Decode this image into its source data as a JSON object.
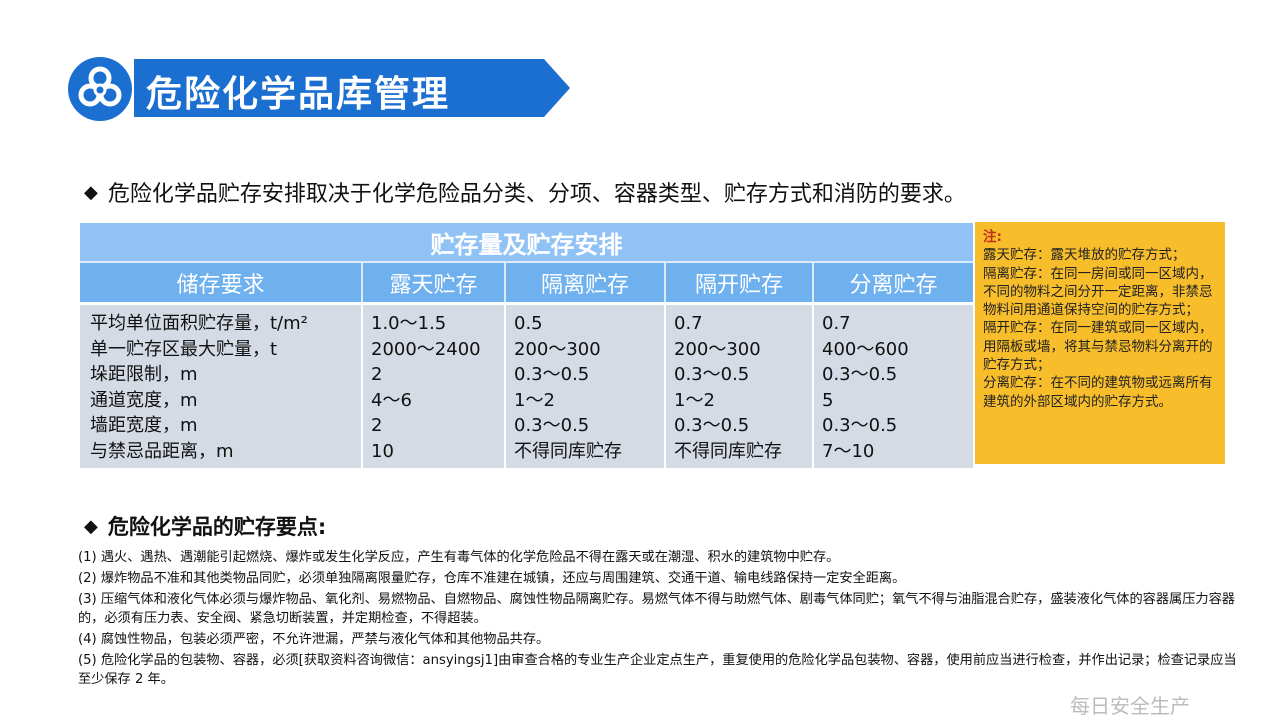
{
  "header": {
    "title": "危险化学品库管理",
    "icon": "biohazard-icon",
    "accent": "#1a6fd0"
  },
  "intro": "危险化学品贮存安排取决于化学危险品分类、分项、容器类型、贮存方式和消防的要求。",
  "table": {
    "title": "贮存量及贮存安排",
    "columns": [
      "储存要求",
      "露天贮存",
      "隔离贮存",
      "隔开贮存",
      "分离贮存"
    ],
    "rows": [
      [
        "平均单位面积贮存量，t/m²",
        "1.0～1.5",
        "0.5",
        "0.7",
        "0.7"
      ],
      [
        "单一贮存区最大贮量，t",
        "2000～2400",
        "200～300",
        "200～300",
        "400～600"
      ],
      [
        "垛距限制，m",
        "2",
        "0.3～0.5",
        "0.3～0.5",
        "0.3～0.5"
      ],
      [
        "通道宽度，m",
        "4～6",
        "1～2",
        "1～2",
        "5"
      ],
      [
        "墙距宽度，m",
        "2",
        "0.3～0.5",
        "0.3～0.5",
        "0.3～0.5"
      ],
      [
        "与禁忌品距离，m",
        "10",
        "不得同库贮存",
        "不得同库贮存",
        "7～10"
      ]
    ]
  },
  "note": {
    "heading": "注:",
    "lines": [
      "露天贮存：露天堆放的贮存方式；",
      "隔离贮存：在同一房间或同一区域内，不同的物料之间分开一定距离，非禁忌物料间用通道保持空间的贮存方式；",
      "隔开贮存：在同一建筑或同一区域内，用隔板或墙，将其与禁忌物料分离开的贮存方式；",
      "分离贮存：在不同的建筑物或远离所有建筑的外部区域内的贮存方式。"
    ]
  },
  "section2": {
    "title": "危险化学品的贮存要点:",
    "items": [
      "(1) 遇火、遇热、遇潮能引起燃烧、爆炸或发生化学反应，产生有毒气体的化学危险品不得在露天或在潮湿、积水的建筑物中贮存。",
      "(2) 爆炸物品不准和其他类物品同贮，必须单独隔离限量贮存，仓库不准建在城镇，还应与周围建筑、交通干道、输电线路保持一定安全距离。",
      "(3) 压缩气体和液化气体必须与爆炸物品、氧化剂、易燃物品、自燃物品、腐蚀性物品隔离贮存。易燃气体不得与助燃气体、剧毒气体同贮；氧气不得与油脂混合贮存，盛装液化气体的容器属压力容器的，必须有压力表、安全阀、紧急切断装置，并定期检查，不得超装。",
      "(4) 腐蚀性物品，包装必须严密，不允许泄漏，严禁与液化气体和其他物品共存。",
      "(5) 危险化学品的包装物、容器，必须[获取资料咨询微信：ansyingsj1]由审查合格的专业生产企业定点生产，重复使用的危险化学品包装物、容器，使用前应当进行检查，并作出记录；检查记录应当至少保存 2 年。"
    ]
  },
  "watermark": "每日安全生产"
}
